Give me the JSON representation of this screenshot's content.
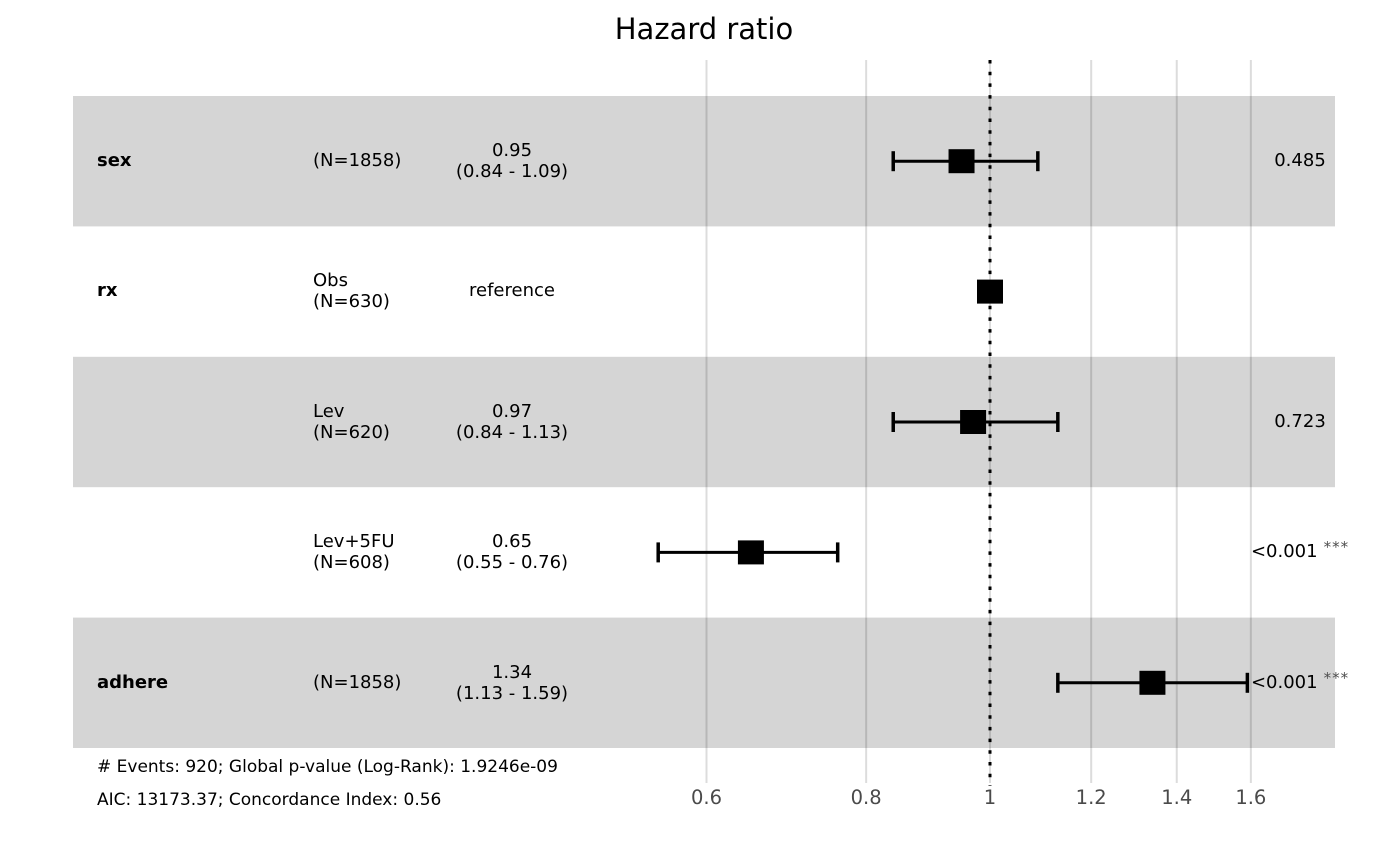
{
  "title": "Hazard ratio",
  "footer": {
    "line1": "# Events: 920; Global p-value (Log-Rank): 1.9246e-09",
    "line2": "AIC: 13173.37; Concordance Index: 0.56"
  },
  "colors": {
    "stripe": "rgba(0,0,0,0.165)",
    "grid": "#dcdcdc",
    "marker": "#000000",
    "reference_line": "#000000",
    "tick_text": "#4a4a4a",
    "star_text": "#4d4d4d"
  },
  "chart_data": {
    "type": "forest",
    "title": "Hazard ratio",
    "x_scale": "log",
    "xlim": [
      0.52,
      1.78
    ],
    "x_ticks": [
      0.6,
      0.8,
      1,
      1.2,
      1.4,
      1.6
    ],
    "x_tick_labels": [
      "0.6",
      "0.8",
      "1",
      "1.2",
      "1.4",
      "1.6"
    ],
    "reference_value": 1,
    "grid": "vertical",
    "legend": "none",
    "rows": [
      {
        "variable": "sex",
        "level_line1": "",
        "level_line2": "(N=1858)",
        "est_line1": "0.95",
        "est_line2": "(0.84 - 1.09)",
        "estimate": 0.95,
        "ci_low": 0.84,
        "ci_high": 1.09,
        "p_label": "0.485",
        "p_stars": "",
        "is_reference": false,
        "striped": true
      },
      {
        "variable": "rx",
        "level_line1": "Obs",
        "level_line2": "(N=630)",
        "est_line1": "reference",
        "est_line2": "",
        "estimate": 1,
        "ci_low": null,
        "ci_high": null,
        "p_label": "",
        "p_stars": "",
        "is_reference": true,
        "striped": false
      },
      {
        "variable": "",
        "level_line1": "Lev",
        "level_line2": "(N=620)",
        "est_line1": "0.97",
        "est_line2": "(0.84 - 1.13)",
        "estimate": 0.97,
        "ci_low": 0.84,
        "ci_high": 1.13,
        "p_label": "0.723",
        "p_stars": "",
        "is_reference": false,
        "striped": true
      },
      {
        "variable": "",
        "level_line1": "Lev+5FU",
        "level_line2": "(N=608)",
        "est_line1": "0.65",
        "est_line2": "(0.55 - 0.76)",
        "estimate": 0.65,
        "ci_low": 0.55,
        "ci_high": 0.76,
        "p_label": "<0.001",
        "p_stars": "***",
        "is_reference": false,
        "striped": false
      },
      {
        "variable": "adhere",
        "level_line1": "",
        "level_line2": "(N=1858)",
        "est_line1": "1.34",
        "est_line2": "(1.13 - 1.59)",
        "estimate": 1.34,
        "ci_low": 1.13,
        "ci_high": 1.59,
        "p_label": "<0.001",
        "p_stars": "***",
        "is_reference": false,
        "striped": true
      }
    ]
  }
}
